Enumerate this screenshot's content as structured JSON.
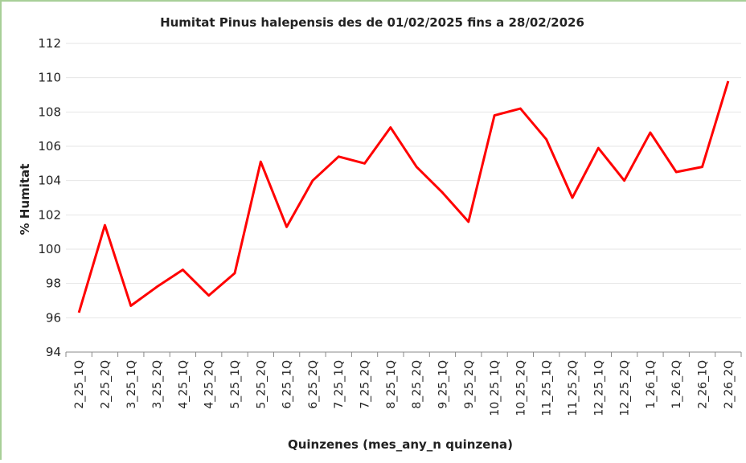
{
  "chart_data": {
    "type": "line",
    "title": "Humitat Pinus halepensis des de 01/02/2025 fins a 28/02/2026",
    "x_label": "Quinzenes (mes_any_n quinzena)",
    "y_label": "% Humitat",
    "categories": [
      "2_25_1Q",
      "2_25_2Q",
      "3_25_1Q",
      "3_25_2Q",
      "4_25_1Q",
      "4_25_2Q",
      "5_25_1Q",
      "5_25_2Q",
      "6_25_1Q",
      "6_25_2Q",
      "7_25_1Q",
      "7_25_2Q",
      "8_25_1Q",
      "8_25_2Q",
      "9_25_1Q",
      "9_25_2Q",
      "10_25_1Q",
      "10_25_2Q",
      "11_25_1Q",
      "11_25_2Q",
      "12_25_1Q",
      "12_25_2Q",
      "1_26_1Q",
      "1_26_2Q",
      "2_26_1Q",
      "2_26_2Q"
    ],
    "series": [
      {
        "name": "% Humitat",
        "color": "#ff0000",
        "values": [
          96.3,
          101.4,
          96.7,
          97.8,
          98.8,
          97.3,
          98.6,
          105.1,
          101.3,
          104.0,
          105.4,
          105.0,
          107.1,
          104.8,
          103.3,
          101.6,
          107.8,
          108.2,
          106.4,
          103.0,
          105.9,
          104.0,
          106.8,
          104.5,
          104.8,
          109.8
        ]
      }
    ],
    "ylim": [
      94,
      112
    ],
    "yticks": [
      94,
      96,
      98,
      100,
      102,
      104,
      106,
      108,
      110,
      112
    ],
    "grid": true
  }
}
